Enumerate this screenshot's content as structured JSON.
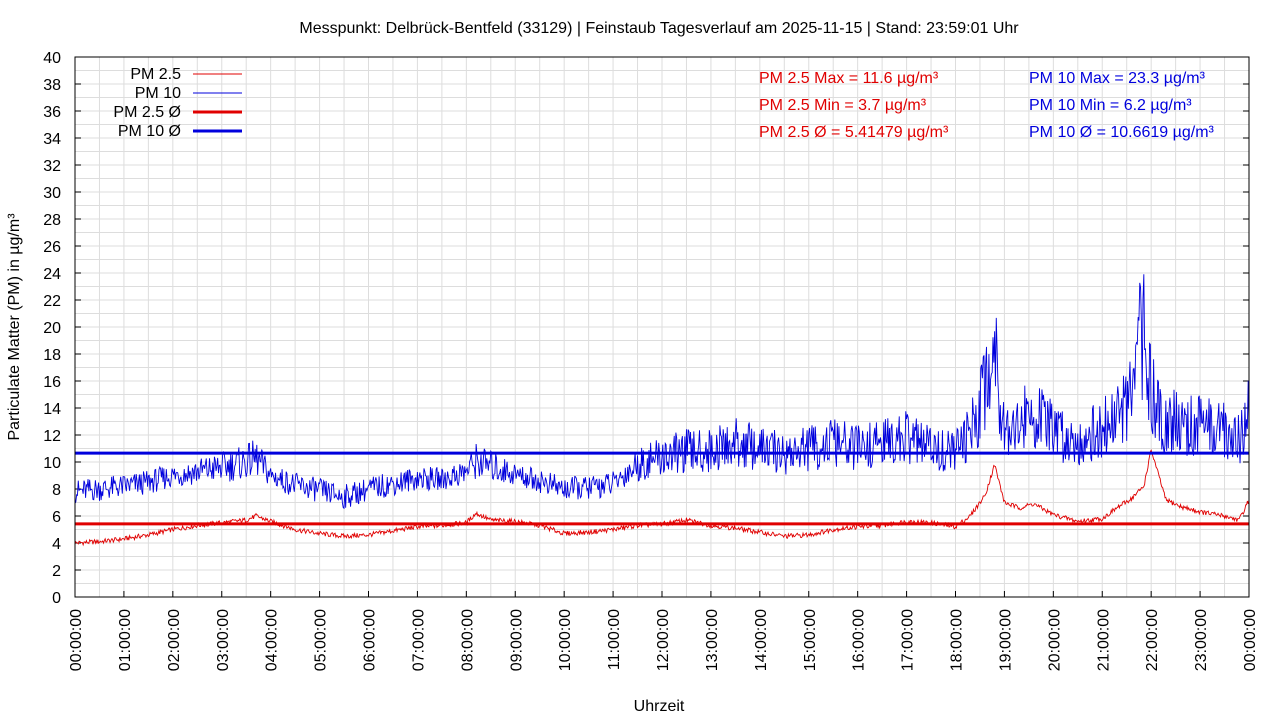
{
  "chart_data": {
    "type": "line",
    "title": "Messpunkt: Delbrück-Bentfeld (33129) | Feinstaub Tagesverlauf am 2025-11-15 | Stand: 23:59:01 Uhr",
    "xlabel": "Uhrzeit",
    "ylabel": "Particulate Matter (PM) in µg/m³",
    "ylim": [
      0,
      40
    ],
    "yticks": [
      0,
      2,
      4,
      6,
      8,
      10,
      12,
      14,
      16,
      18,
      20,
      22,
      24,
      26,
      28,
      30,
      32,
      34,
      36,
      38,
      40
    ],
    "xticks": [
      "00:00:00",
      "01:00:00",
      "02:00:00",
      "03:00:00",
      "04:00:00",
      "05:00:00",
      "06:00:00",
      "07:00:00",
      "08:00:00",
      "09:00:00",
      "10:00:00",
      "11:00:00",
      "12:00:00",
      "13:00:00",
      "14:00:00",
      "15:00:00",
      "16:00:00",
      "17:00:00",
      "18:00:00",
      "19:00:00",
      "20:00:00",
      "21:00:00",
      "22:00:00",
      "23:00:00",
      "00:00:00"
    ],
    "x_unit": "hour of day",
    "grid": true,
    "legend_position": "top-left",
    "series": [
      {
        "name": "PM 2.5",
        "color": "#e00000",
        "style": "thin",
        "x": [
          0,
          0.5,
          1,
          1.5,
          2,
          2.5,
          3,
          3.5,
          3.7,
          4,
          4.5,
          5,
          5.5,
          6,
          6.5,
          7,
          7.5,
          8,
          8.2,
          8.5,
          9,
          9.5,
          10,
          10.5,
          11,
          11.5,
          12,
          12.5,
          13,
          13.5,
          14,
          14.5,
          15,
          15.5,
          16,
          16.5,
          17,
          17.5,
          18,
          18.3,
          18.6,
          18.8,
          19,
          19.3,
          19.6,
          20,
          20.5,
          21,
          21.3,
          21.6,
          21.85,
          22,
          22.3,
          22.6,
          23,
          23.5,
          23.8,
          24
        ],
        "values": [
          4.0,
          4.1,
          4.3,
          4.6,
          5.0,
          5.3,
          5.5,
          5.7,
          6.0,
          5.6,
          5.0,
          4.7,
          4.5,
          4.6,
          4.9,
          5.2,
          5.3,
          5.5,
          6.2,
          5.7,
          5.6,
          5.3,
          4.7,
          4.8,
          5.0,
          5.3,
          5.4,
          5.7,
          5.3,
          5.1,
          4.8,
          4.5,
          4.6,
          5.0,
          5.2,
          5.3,
          5.6,
          5.5,
          5.2,
          6.0,
          7.5,
          9.8,
          7.0,
          6.6,
          6.9,
          6.1,
          5.6,
          5.8,
          6.6,
          7.3,
          8.2,
          10.9,
          7.2,
          6.7,
          6.3,
          6.0,
          5.7,
          7.2
        ]
      },
      {
        "name": "PM 10",
        "color": "#0000dd",
        "style": "thin",
        "x": [
          0,
          0.5,
          1,
          1.5,
          2,
          2.5,
          3,
          3.5,
          3.7,
          4,
          4.5,
          5,
          5.5,
          6,
          6.5,
          7,
          7.5,
          8,
          8.2,
          8.5,
          9,
          9.5,
          10,
          10.5,
          11,
          11.5,
          12,
          12.5,
          13,
          13.5,
          14,
          14.5,
          15,
          15.5,
          16,
          16.5,
          17,
          17.5,
          18,
          18.3,
          18.6,
          18.8,
          19,
          19.3,
          19.6,
          20,
          20.5,
          21,
          21.3,
          21.6,
          21.85,
          22,
          22.3,
          22.6,
          23,
          23.5,
          23.8,
          24
        ],
        "values": [
          7.8,
          8.0,
          8.2,
          8.5,
          9.0,
          9.3,
          9.6,
          10.0,
          10.3,
          9.0,
          8.3,
          7.9,
          7.4,
          8.0,
          8.4,
          8.8,
          8.7,
          9.3,
          10.1,
          9.7,
          9.1,
          8.6,
          8.0,
          8.1,
          8.4,
          9.8,
          10.4,
          10.8,
          10.8,
          11.4,
          11.0,
          10.6,
          11.0,
          11.4,
          11.0,
          11.4,
          11.8,
          11.0,
          10.8,
          12.0,
          15.8,
          18.5,
          12.8,
          12.8,
          13.6,
          12.2,
          11.6,
          12.4,
          13.4,
          14.6,
          20.5,
          14.8,
          13.0,
          12.8,
          12.6,
          12.4,
          11.6,
          14.5
        ]
      },
      {
        "name": "PM 2.5 Ø",
        "color": "#e00000",
        "style": "thick",
        "constant": 5.41479
      },
      {
        "name": "PM 10 Ø",
        "color": "#0000dd",
        "style": "thick",
        "constant": 10.6619
      }
    ],
    "annotations": {
      "pm25": [
        "PM 2.5 Max = 11.6 µg/m³",
        "PM 2.5 Min = 3.7 µg/m³",
        "PM 2.5 Ø = 5.41479 µg/m³"
      ],
      "pm10": [
        "PM 10 Max = 23.3 µg/m³",
        "PM 10 Min = 6.2 µg/m³",
        "PM 10 Ø = 10.6619 µg/m³"
      ]
    }
  }
}
